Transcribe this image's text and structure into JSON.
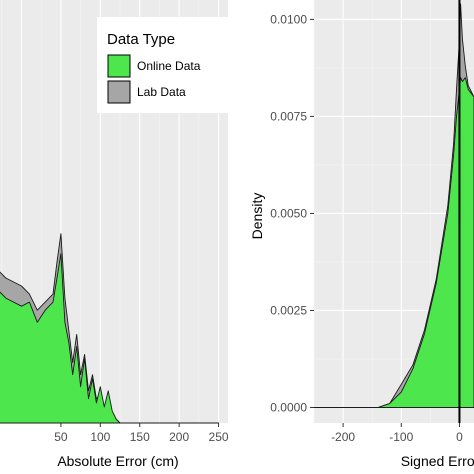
{
  "colors": {
    "panel_bg": "#ebebeb",
    "grid_major": "#ffffff",
    "online": "#4de64d",
    "lab": "#a6a6a6",
    "outline": "#1a1a1a"
  },
  "chart_data": [
    {
      "type": "area",
      "xlabel": "Absolute Error   (cm)",
      "ylabel": "",
      "xlim": [
        -40,
        262
      ],
      "ylim": [
        0,
        0.0105
      ],
      "x_ticks": [
        50,
        100,
        150,
        200,
        250
      ],
      "x_tick_labels": [
        "50",
        "100",
        "150",
        "200",
        "250"
      ],
      "grid": true,
      "legend": {
        "title": "Data Type",
        "position": "top-right",
        "items": [
          {
            "label": "Online Data",
            "color": "#4de64d"
          },
          {
            "label": "Lab Data",
            "color": "#a6a6a6"
          }
        ]
      },
      "series": [
        {
          "name": "Lab Data",
          "x": [
            -40,
            -20,
            0,
            10,
            20,
            30,
            40,
            45,
            50,
            55,
            60,
            65,
            70,
            75,
            80,
            85,
            90,
            95,
            100,
            105,
            110,
            115,
            120,
            125,
            130,
            250
          ],
          "values": [
            0.004,
            0.0036,
            0.0034,
            0.0032,
            0.0028,
            0.003,
            0.0032,
            0.004,
            0.0047,
            0.0031,
            0.0023,
            0.0015,
            0.0022,
            0.0012,
            0.0017,
            0.0008,
            0.0012,
            0.0006,
            0.0007,
            0.0004,
            0.0006,
            0.0002,
            0.0001,
            0.0,
            0.0,
            0.0
          ]
        },
        {
          "name": "Online Data",
          "x": [
            -40,
            -20,
            0,
            10,
            20,
            30,
            40,
            45,
            50,
            55,
            60,
            65,
            70,
            75,
            80,
            85,
            90,
            95,
            100,
            105,
            110,
            115,
            120,
            125,
            130,
            250
          ],
          "values": [
            0.0035,
            0.0031,
            0.0029,
            0.003,
            0.0025,
            0.0028,
            0.003,
            0.0036,
            0.0042,
            0.0025,
            0.002,
            0.0012,
            0.0019,
            0.0009,
            0.0016,
            0.0006,
            0.0011,
            0.0005,
            0.0009,
            0.0004,
            0.0008,
            0.0003,
            0.0001,
            0.0,
            0.0,
            0.0
          ]
        }
      ]
    },
    {
      "type": "area",
      "xlabel": "Signed Error",
      "ylabel": "Density",
      "xlim": [
        -250,
        25
      ],
      "ylim": [
        -0.0004,
        0.0105
      ],
      "x_ticks": [
        -200,
        -100,
        0
      ],
      "x_tick_labels": [
        "-200",
        "-100",
        "0"
      ],
      "y_ticks": [
        0,
        0.0025,
        0.005,
        0.0075,
        0.01
      ],
      "y_tick_labels": [
        "0.0000",
        "0.0025",
        "0.0050",
        "0.0075",
        "0.0100"
      ],
      "grid": true,
      "vline": 0,
      "series": [
        {
          "name": "Lab Data",
          "x": [
            -250,
            -140,
            -120,
            -100,
            -80,
            -60,
            -40,
            -20,
            -10,
            -5,
            0,
            2,
            5,
            10,
            15,
            25
          ],
          "values": [
            0,
            0,
            0.0001,
            0.0006,
            0.0011,
            0.002,
            0.0033,
            0.0052,
            0.0068,
            0.0082,
            0.0095,
            0.0104,
            0.0095,
            0.0088,
            0.0083,
            0.008
          ]
        },
        {
          "name": "Online Data",
          "x": [
            -250,
            -140,
            -120,
            -100,
            -80,
            -60,
            -40,
            -20,
            -10,
            -5,
            0,
            2,
            5,
            10,
            15,
            25
          ],
          "values": [
            0,
            0,
            0.0001,
            0.0004,
            0.001,
            0.0019,
            0.0032,
            0.005,
            0.0065,
            0.0075,
            0.0082,
            0.0085,
            0.0084,
            0.0085,
            0.0082,
            0.008
          ]
        }
      ]
    }
  ]
}
